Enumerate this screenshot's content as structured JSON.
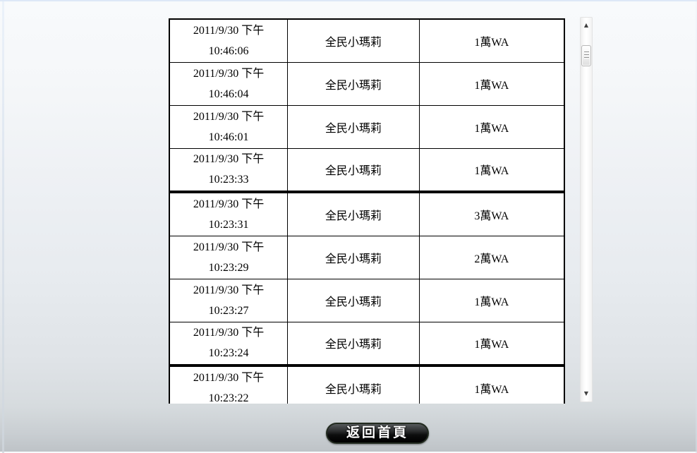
{
  "records": {
    "groups": [
      {
        "rows": [
          {
            "date": "2011/9/30 下午",
            "time": "10:46:06",
            "name": "全民小瑪莉",
            "amount": "1萬WA"
          },
          {
            "date": "2011/9/30 下午",
            "time": "10:46:04",
            "name": "全民小瑪莉",
            "amount": "1萬WA"
          },
          {
            "date": "2011/9/30 下午",
            "time": "10:46:01",
            "name": "全民小瑪莉",
            "amount": "1萬WA"
          },
          {
            "date": "2011/9/30 下午",
            "time": "10:23:33",
            "name": "全民小瑪莉",
            "amount": "1萬WA"
          }
        ]
      },
      {
        "rows": [
          {
            "date": "2011/9/30 下午",
            "time": "10:23:31",
            "name": "全民小瑪莉",
            "amount": "3萬WA"
          },
          {
            "date": "2011/9/30 下午",
            "time": "10:23:29",
            "name": "全民小瑪莉",
            "amount": "2萬WA"
          },
          {
            "date": "2011/9/30 下午",
            "time": "10:23:27",
            "name": "全民小瑪莉",
            "amount": "1萬WA"
          },
          {
            "date": "2011/9/30 下午",
            "time": "10:23:24",
            "name": "全民小瑪莉",
            "amount": "1萬WA"
          }
        ]
      },
      {
        "rows": [
          {
            "date": "2011/9/30 下午",
            "time": "10:23:22",
            "name": "全民小瑪莉",
            "amount": "1萬WA"
          }
        ]
      }
    ]
  },
  "scrollbar": {
    "up_arrow": "▲",
    "down_arrow": "▼"
  },
  "footer": {
    "back_button_label": "返回首頁"
  },
  "colors": {
    "table_border": "#000000",
    "table_background": "#ffffff",
    "button_border": "#222b20",
    "button_text": "#ffffff",
    "page_top": "#f8fafc",
    "page_bottom": "#bec3c7"
  }
}
